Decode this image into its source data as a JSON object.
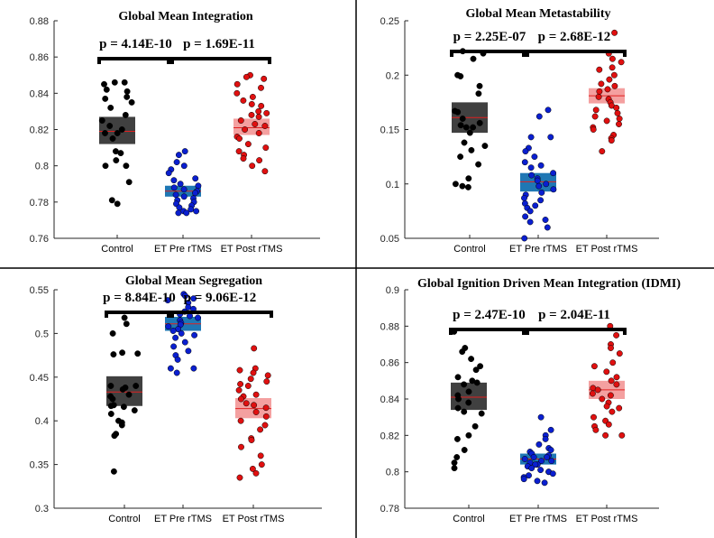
{
  "chart_data": [
    {
      "type": "scatter",
      "title": "Global Mean Integration",
      "categories": [
        "Control",
        "ET Pre rTMS",
        "ET Post rTMS"
      ],
      "ylim": [
        0.76,
        0.88
      ],
      "yticks": [
        "0.76",
        "0.78",
        "0.8",
        "0.82",
        "0.84",
        "0.86",
        "0.88"
      ],
      "pvalues": [
        {
          "label": "p = 4.14E-10",
          "from": 0,
          "to": 1
        },
        {
          "label": "p = 1.69E-11",
          "from": 1,
          "to": 2
        }
      ],
      "summary": [
        {
          "mean": 0.819,
          "lower": 0.812,
          "upper": 0.827
        },
        {
          "mean": 0.786,
          "lower": 0.783,
          "upper": 0.789
        },
        {
          "mean": 0.821,
          "lower": 0.817,
          "upper": 0.826
        }
      ],
      "series": [
        {
          "values": [
            0.846,
            0.845,
            0.846,
            0.841,
            0.842,
            0.838,
            0.837,
            0.835,
            0.832,
            0.828,
            0.825,
            0.822,
            0.82,
            0.818,
            0.818,
            0.815,
            0.807,
            0.808,
            0.803,
            0.8,
            0.8,
            0.791,
            0.781,
            0.779
          ]
        },
        {
          "values": [
            0.808,
            0.806,
            0.802,
            0.8,
            0.798,
            0.796,
            0.793,
            0.792,
            0.79,
            0.789,
            0.788,
            0.787,
            0.786,
            0.785,
            0.784,
            0.783,
            0.782,
            0.781,
            0.78,
            0.779,
            0.778,
            0.777,
            0.776,
            0.775,
            0.775,
            0.774,
            0.774
          ]
        },
        {
          "values": [
            0.85,
            0.849,
            0.848,
            0.845,
            0.843,
            0.84,
            0.838,
            0.836,
            0.834,
            0.833,
            0.83,
            0.829,
            0.828,
            0.827,
            0.825,
            0.823,
            0.822,
            0.82,
            0.818,
            0.816,
            0.815,
            0.812,
            0.81,
            0.808,
            0.806,
            0.804,
            0.803,
            0.8,
            0.797
          ]
        }
      ]
    },
    {
      "type": "scatter",
      "title": "Global Mean Metastability",
      "categories": [
        "Control",
        "ET Pre rTMS",
        "ET Post rTMS"
      ],
      "ylim": [
        0.05,
        0.25
      ],
      "yticks": [
        "0.05",
        "0.1",
        "0.15",
        "0.2",
        "0.25"
      ],
      "pvalues": [
        {
          "label": "p = 2.25E-07",
          "from": 0,
          "to": 1
        },
        {
          "label": "p = 2.68E-12",
          "from": 1,
          "to": 2
        }
      ],
      "summary": [
        {
          "mean": 0.161,
          "lower": 0.147,
          "upper": 0.175
        },
        {
          "mean": 0.102,
          "lower": 0.093,
          "upper": 0.11
        },
        {
          "mean": 0.181,
          "lower": 0.174,
          "upper": 0.188
        }
      ],
      "series": [
        {
          "values": [
            0.222,
            0.22,
            0.215,
            0.2,
            0.199,
            0.19,
            0.183,
            0.167,
            0.166,
            0.16,
            0.156,
            0.154,
            0.152,
            0.152,
            0.147,
            0.138,
            0.135,
            0.131,
            0.125,
            0.118,
            0.105,
            0.1,
            0.098,
            0.097
          ]
        },
        {
          "values": [
            0.168,
            0.162,
            0.143,
            0.143,
            0.133,
            0.13,
            0.125,
            0.12,
            0.117,
            0.115,
            0.11,
            0.108,
            0.105,
            0.103,
            0.1,
            0.098,
            0.095,
            0.092,
            0.09,
            0.087,
            0.085,
            0.082,
            0.08,
            0.078,
            0.075,
            0.07,
            0.067,
            0.065,
            0.06,
            0.05
          ]
        },
        {
          "values": [
            0.239,
            0.22,
            0.215,
            0.212,
            0.207,
            0.205,
            0.2,
            0.196,
            0.192,
            0.19,
            0.187,
            0.185,
            0.18,
            0.178,
            0.175,
            0.172,
            0.17,
            0.168,
            0.165,
            0.162,
            0.16,
            0.158,
            0.155,
            0.152,
            0.15,
            0.145,
            0.142,
            0.14,
            0.13
          ]
        }
      ]
    },
    {
      "type": "scatter",
      "title": "Global Mean Segregation",
      "categories": [
        "Control",
        "ET Pre rTMS",
        "ET Post rTMS"
      ],
      "ylim": [
        0.3,
        0.55
      ],
      "yticks": [
        "0.3",
        "0.35",
        "0.4",
        "0.45",
        "0.5",
        "0.55"
      ],
      "pvalues": [
        {
          "label": "p = 8.84E-10",
          "from": 0,
          "to": 1
        },
        {
          "label": "p = 9.06E-12",
          "from": 1,
          "to": 2
        }
      ],
      "summary": [
        {
          "mean": 0.433,
          "lower": 0.417,
          "upper": 0.451
        },
        {
          "mean": 0.511,
          "lower": 0.503,
          "upper": 0.519
        },
        {
          "mean": 0.414,
          "lower": 0.403,
          "upper": 0.426
        }
      ],
      "series": [
        {
          "values": [
            0.518,
            0.511,
            0.5,
            0.478,
            0.477,
            0.476,
            0.44,
            0.44,
            0.438,
            0.436,
            0.43,
            0.428,
            0.425,
            0.418,
            0.417,
            0.416,
            0.412,
            0.408,
            0.4,
            0.398,
            0.395,
            0.385,
            0.383,
            0.342
          ]
        },
        {
          "values": [
            0.545,
            0.543,
            0.54,
            0.538,
            0.535,
            0.53,
            0.528,
            0.525,
            0.522,
            0.52,
            0.518,
            0.515,
            0.512,
            0.51,
            0.508,
            0.505,
            0.503,
            0.5,
            0.498,
            0.495,
            0.49,
            0.485,
            0.48,
            0.475,
            0.47,
            0.46,
            0.46,
            0.455
          ]
        },
        {
          "values": [
            0.483,
            0.46,
            0.458,
            0.455,
            0.452,
            0.448,
            0.445,
            0.442,
            0.44,
            0.435,
            0.43,
            0.428,
            0.425,
            0.42,
            0.418,
            0.415,
            0.41,
            0.405,
            0.4,
            0.395,
            0.39,
            0.38,
            0.378,
            0.37,
            0.36,
            0.35,
            0.345,
            0.34,
            0.335
          ]
        }
      ]
    },
    {
      "type": "scatter",
      "title": "Global Ignition Driven Mean Integration (IDMI)",
      "categories": [
        "Control",
        "ET Pre rTMS",
        "ET Post rTMS"
      ],
      "ylim": [
        0.78,
        0.9
      ],
      "yticks": [
        "0.78",
        "0.8",
        "0.82",
        "0.84",
        "0.86",
        "0.88",
        "0.9"
      ],
      "pvalues": [
        {
          "label": "p = 2.47E-10",
          "from": 0,
          "to": 1
        },
        {
          "label": "p = 2.04E-11",
          "from": 1,
          "to": 2
        }
      ],
      "summary": [
        {
          "mean": 0.841,
          "lower": 0.834,
          "upper": 0.849
        },
        {
          "mean": 0.807,
          "lower": 0.804,
          "upper": 0.81
        },
        {
          "mean": 0.845,
          "lower": 0.84,
          "upper": 0.85
        }
      ],
      "series": [
        {
          "values": [
            0.877,
            0.868,
            0.866,
            0.862,
            0.858,
            0.856,
            0.852,
            0.85,
            0.849,
            0.848,
            0.844,
            0.842,
            0.84,
            0.838,
            0.835,
            0.833,
            0.832,
            0.825,
            0.82,
            0.818,
            0.812,
            0.808,
            0.805,
            0.802
          ]
        },
        {
          "values": [
            0.83,
            0.823,
            0.82,
            0.818,
            0.815,
            0.813,
            0.812,
            0.811,
            0.81,
            0.809,
            0.808,
            0.808,
            0.807,
            0.806,
            0.806,
            0.805,
            0.804,
            0.804,
            0.803,
            0.802,
            0.801,
            0.8,
            0.8,
            0.799,
            0.798,
            0.797,
            0.796,
            0.795,
            0.794
          ]
        },
        {
          "values": [
            0.88,
            0.875,
            0.87,
            0.868,
            0.865,
            0.86,
            0.858,
            0.855,
            0.852,
            0.85,
            0.848,
            0.846,
            0.845,
            0.843,
            0.842,
            0.84,
            0.838,
            0.836,
            0.835,
            0.833,
            0.83,
            0.828,
            0.826,
            0.825,
            0.823,
            0.82,
            0.82
          ]
        }
      ]
    }
  ],
  "colors": {
    "groups": [
      "#000000",
      "#0a1fd0",
      "#e01010"
    ],
    "box_fill": [
      "#404040",
      "#1f77b4",
      "#f4a0a0"
    ],
    "mean_line": "#e02020",
    "pbar": "#000000"
  }
}
